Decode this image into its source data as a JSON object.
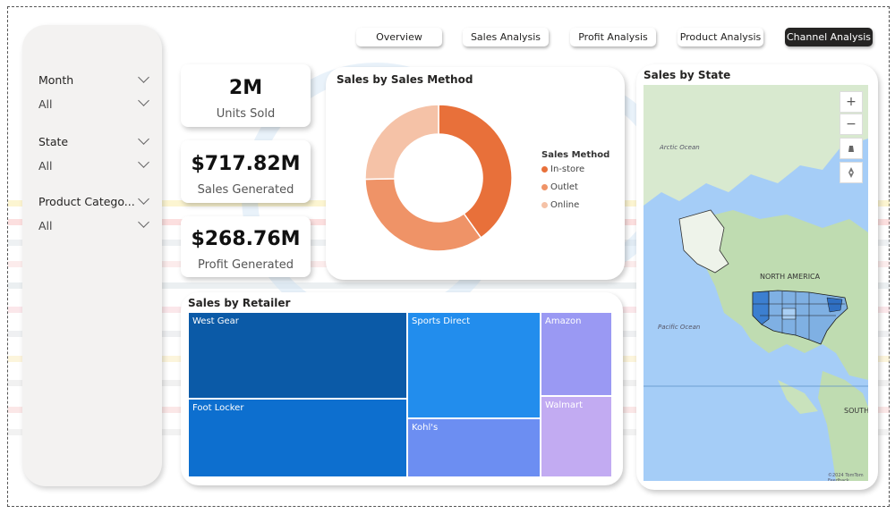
{
  "nav": {
    "tabs": [
      {
        "label": "Overview"
      },
      {
        "label": "Sales Analysis"
      },
      {
        "label": "Profit Analysis"
      },
      {
        "label": "Product Analysis"
      },
      {
        "label": "Channel Analysis",
        "active": true
      }
    ]
  },
  "sidebar": {
    "slicers": [
      {
        "title": "Month",
        "value": "All"
      },
      {
        "title": "State",
        "value": "All"
      },
      {
        "title": "Product Catego...",
        "value": "All"
      }
    ]
  },
  "kpis": [
    {
      "value": "2M",
      "label": "Units Sold"
    },
    {
      "value": "$717.82M",
      "label": "Sales Generated"
    },
    {
      "value": "$268.76M",
      "label": "Profit Generated"
    }
  ],
  "donut": {
    "title": "Sales by Sales Method",
    "legend_title": "Sales Method",
    "colors": [
      "#e8703a",
      "#ef9367",
      "#f5c2a7"
    ]
  },
  "treemap": {
    "title": "Sales by Retailer",
    "tiles": [
      {
        "label": "West Gear",
        "color": "#0b5aa7"
      },
      {
        "label": "Foot Locker",
        "color": "#0d6fcf"
      },
      {
        "label": "Sports Direct",
        "color": "#228ded"
      },
      {
        "label": "Kohl's",
        "color": "#6c8ef2"
      },
      {
        "label": "Amazon",
        "color": "#9a99f3"
      },
      {
        "label": "Walmart",
        "color": "#c2abf2"
      }
    ]
  },
  "map": {
    "title": "Sales by State",
    "labels": {
      "arctic": "Arctic Ocean",
      "north_america": "NORTH AMERICA",
      "pacific": "Pacific Ocean",
      "south": "SOUTH"
    },
    "controls": {
      "zoom_in": "+",
      "zoom_out": "−"
    },
    "attribution": "©2024 TomTom  Feedback"
  },
  "chart_data": {
    "type": "pie",
    "title": "Sales by Sales Method",
    "legend_title": "Sales Method",
    "categories": [
      "In-store",
      "Outlet",
      "Online"
    ],
    "values": [
      40.2,
      34.5,
      25.3
    ],
    "donut": true,
    "legend_position": "right"
  }
}
